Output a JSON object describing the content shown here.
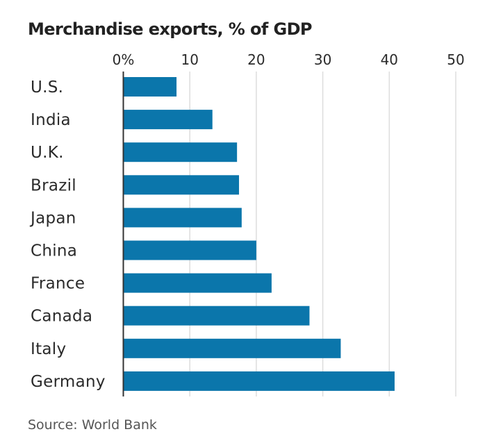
{
  "chart_data": {
    "type": "bar",
    "orientation": "horizontal",
    "title": "Merchandise exports, % of GDP",
    "source": "Source: World Bank",
    "xlabel": "",
    "ylabel": "",
    "xlim": [
      0,
      50
    ],
    "ticks": [
      0,
      10,
      20,
      30,
      40,
      50
    ],
    "tick_labels": [
      "0%",
      "10",
      "20",
      "30",
      "40",
      "50"
    ],
    "grid": true,
    "categories": [
      "U.S.",
      "India",
      "U.K.",
      "Brazil",
      "Japan",
      "China",
      "France",
      "Canada",
      "Italy",
      "Germany"
    ],
    "values": [
      8.0,
      13.4,
      17.1,
      17.4,
      17.8,
      20.0,
      22.3,
      28.0,
      32.7,
      40.8
    ],
    "bar_color": "#0b76ab",
    "grid_color": "#dddddd",
    "axis_color": "#333333"
  }
}
